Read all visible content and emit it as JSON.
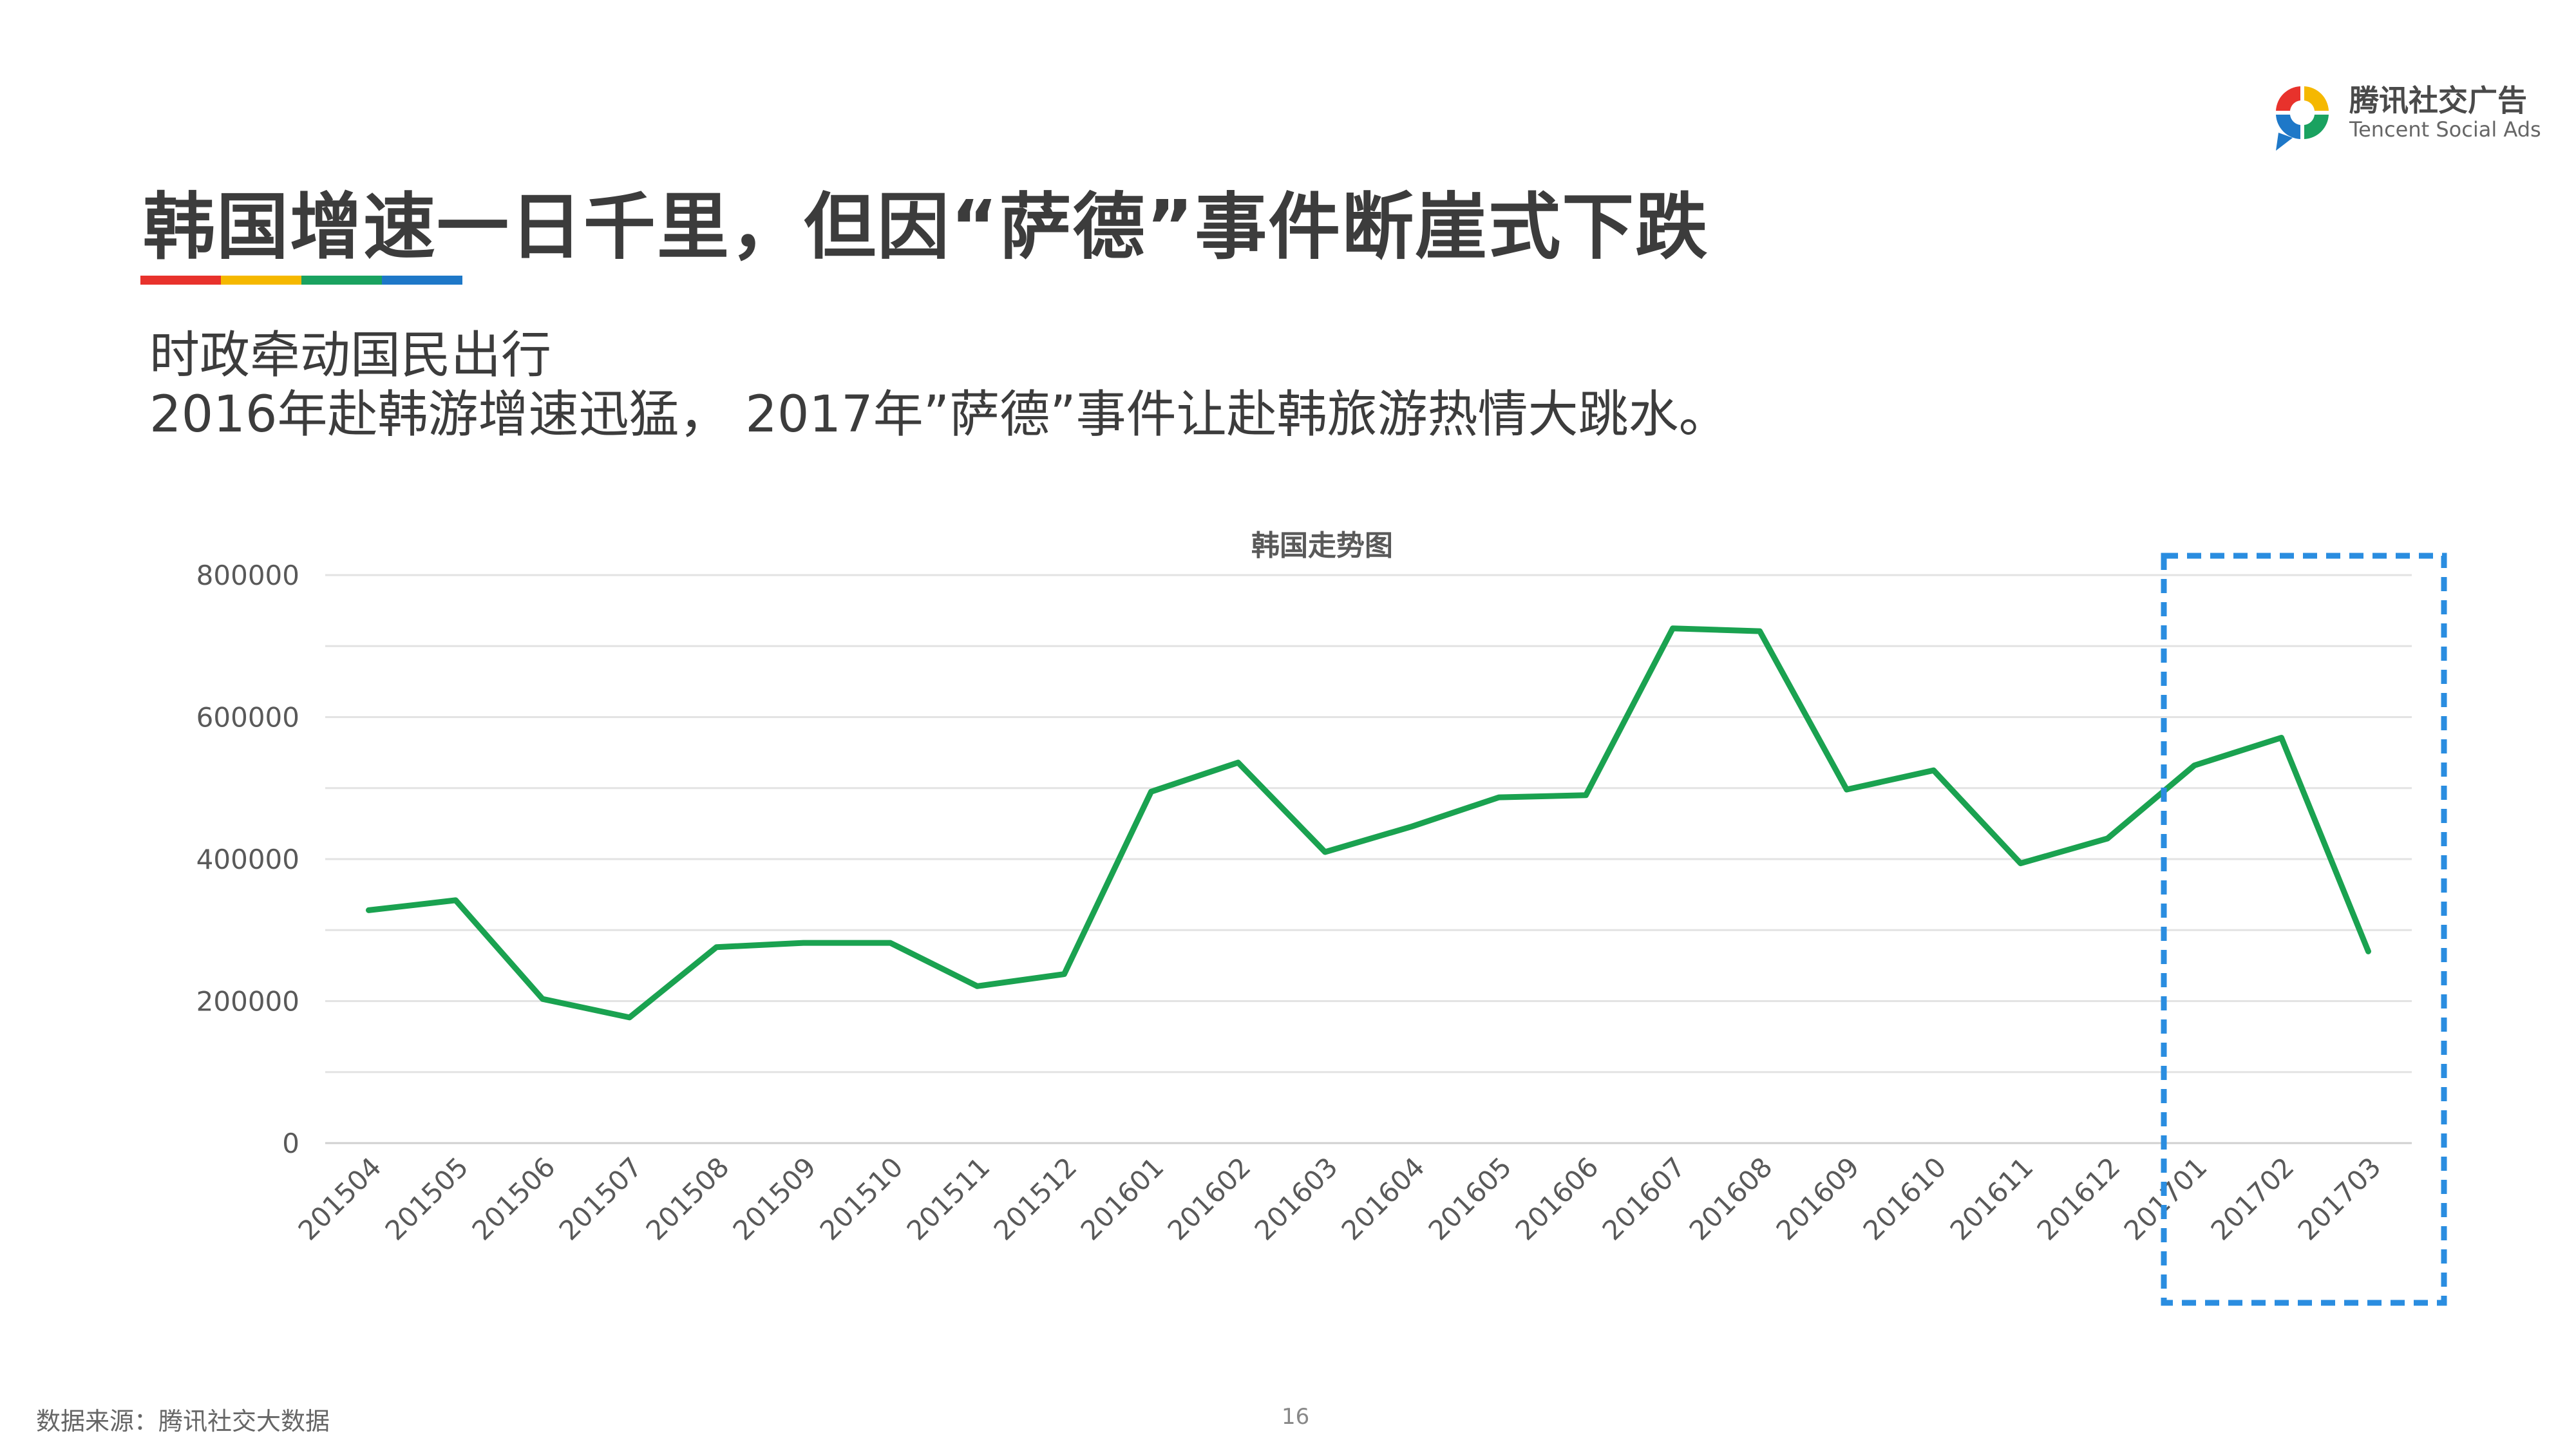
{
  "logo": {
    "name_cn": "腾讯社交广告",
    "name_en": "Tencent Social Ads",
    "colors": [
      "#e8322c",
      "#f5b800",
      "#1aa260",
      "#1e78c8"
    ]
  },
  "header": {
    "title": "韩国增速一日千里，但因“萨德”事件断崖式下跌",
    "accent_colors": [
      "#e8322c",
      "#f5b800",
      "#1aa260",
      "#1e78c8"
    ]
  },
  "subtitle": {
    "line1": "时政牵动国民出行",
    "line2": "2016年赴韩游增速迅猛， 2017年”萨德”事件让赴韩旅游热情大跳水。"
  },
  "chart_data": {
    "type": "line",
    "title": "韩国走势图",
    "categories": [
      "201504",
      "201505",
      "201506",
      "201507",
      "201508",
      "201509",
      "201510",
      "201511",
      "201512",
      "201601",
      "201602",
      "201603",
      "201604",
      "201605",
      "201606",
      "201607",
      "201608",
      "201609",
      "201610",
      "201611",
      "201612",
      "201701",
      "201702",
      "201703"
    ],
    "series": [
      {
        "values": [
          328000,
          342000,
          203000,
          177000,
          276000,
          282000,
          282000,
          221000,
          238000,
          495000,
          536000,
          410000,
          446000,
          487000,
          490000,
          725000,
          721000,
          498000,
          525000,
          394000,
          429000,
          532000,
          571000,
          270000
        ],
        "color": "#1aa250"
      }
    ],
    "ylim": [
      0,
      800000
    ],
    "yticks": [
      "0",
      "200000",
      "400000",
      "600000",
      "800000"
    ],
    "grid": true,
    "legend": "none",
    "highlight": {
      "range": [
        "201701",
        "201703"
      ],
      "style": "dashed-box",
      "color": "#2a8de0"
    }
  },
  "footer": {
    "source": "数据来源：腾讯社交大数据",
    "page_number": "16"
  }
}
